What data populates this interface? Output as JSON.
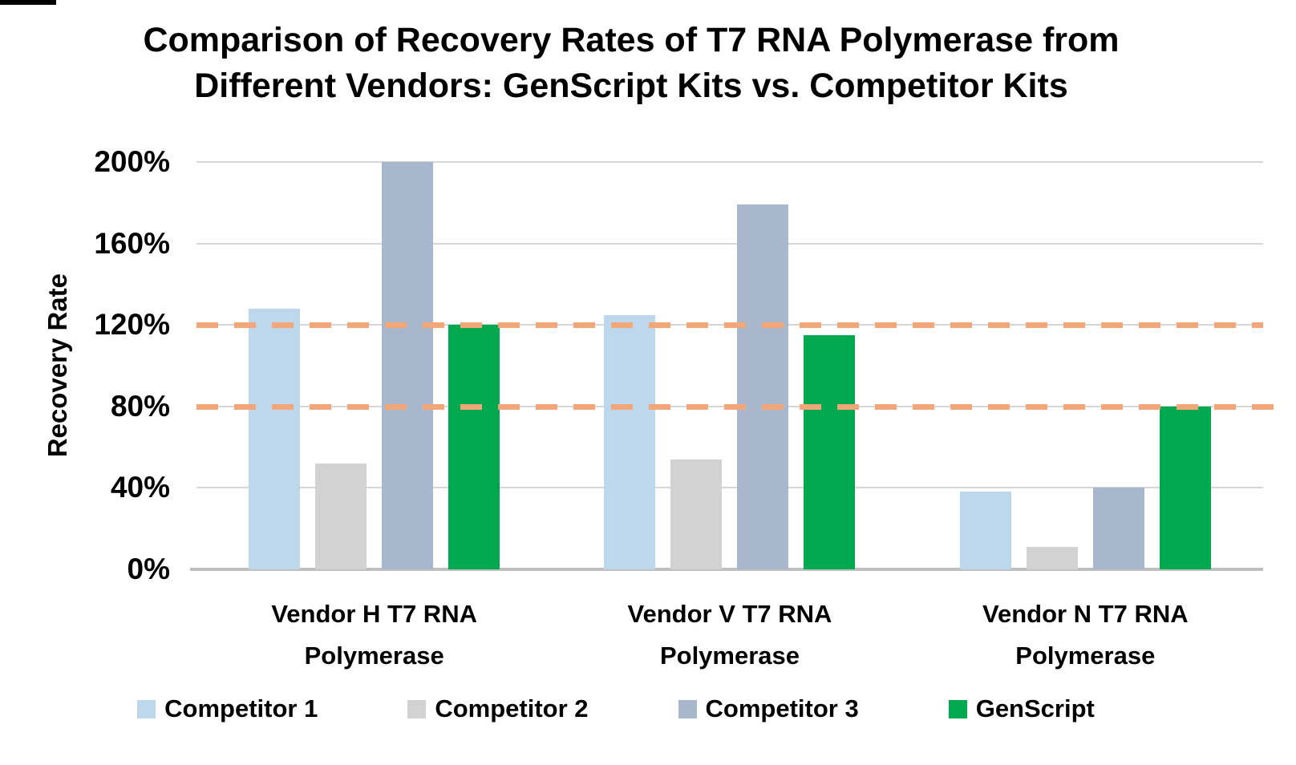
{
  "title": {
    "line1": "Comparison of Recovery Rates of T7 RNA Polymerase from",
    "line2": "Different Vendors: GenScript Kits vs. Competitor Kits"
  },
  "chart_data": {
    "type": "bar",
    "title": "Comparison of Recovery Rates of T7 RNA Polymerase from Different Vendors: GenScript Kits vs. Competitor Kits",
    "xlabel": "",
    "ylabel": "Recovery Rate",
    "ylim": [
      0,
      200
    ],
    "grid": true,
    "grid_color": "#d6d6d6",
    "axis_line_color": "#bfbfbf",
    "legend_position": "bottom",
    "yticks": [
      {
        "value": 0,
        "label": "0%"
      },
      {
        "value": 40,
        "label": "40%"
      },
      {
        "value": 80,
        "label": "80%"
      },
      {
        "value": 120,
        "label": "120%"
      },
      {
        "value": 160,
        "label": "160%"
      },
      {
        "value": 200,
        "label": "200%"
      }
    ],
    "categories": [
      "Vendor H T7 RNA Polymerase",
      "Vendor V T7 RNA Polymerase",
      "Vendor N T7 RNA Polymerase"
    ],
    "category_label_lines": [
      [
        "Vendor H T7 RNA",
        "Polymerase"
      ],
      [
        "Vendor V T7 RNA",
        "Polymerase"
      ],
      [
        "Vendor N T7 RNA",
        "Polymerase"
      ]
    ],
    "series": [
      {
        "name": "Competitor 1",
        "color": "#bdd7ec",
        "values": [
          128,
          125,
          38
        ]
      },
      {
        "name": "Competitor 2",
        "color": "#d2d2d2",
        "values": [
          52,
          54,
          11
        ]
      },
      {
        "name": "Competitor 3",
        "color": "#a9b7cd",
        "values": [
          200,
          179,
          40
        ]
      },
      {
        "name": "GenScript",
        "color": "#00a950",
        "values": [
          120,
          115,
          80
        ]
      }
    ],
    "reference_lines": [
      {
        "value": 120,
        "color": "#f3a678",
        "style": "dashed"
      },
      {
        "value": 80,
        "color": "#f3a678",
        "style": "dashed"
      }
    ]
  }
}
